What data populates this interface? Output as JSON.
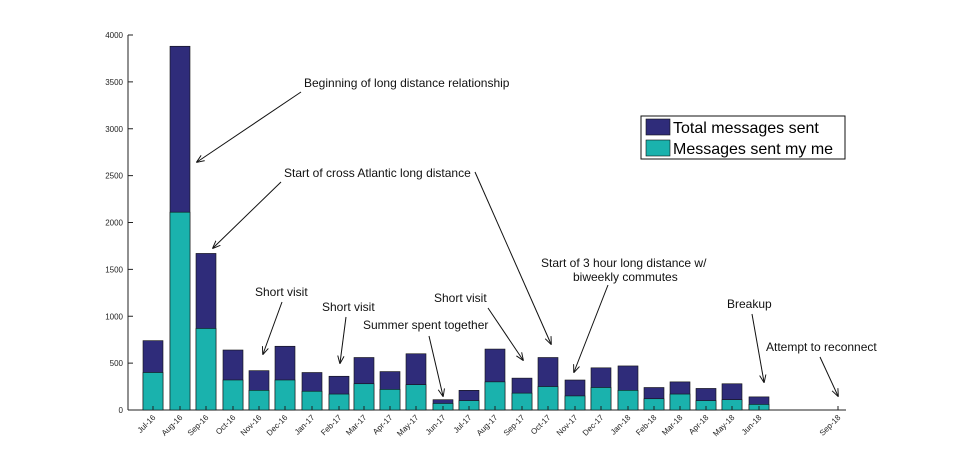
{
  "chart_data": {
    "type": "bar",
    "categories": [
      "Jul-16",
      "Aug-16",
      "Sep-16",
      "Oct-16",
      "Nov-16",
      "Dec-16",
      "Jan-17",
      "Feb-17",
      "Mar-17",
      "Apr-17",
      "May-17",
      "Jun-17",
      "Jul-17",
      "Aug-17",
      "Sep-17",
      "Oct-17",
      "Nov-17",
      "Dec-17",
      "Jan-18",
      "Feb-18",
      "Mar-18",
      "Apr-18",
      "May-18",
      "Jun-18",
      "Sep-18"
    ],
    "series": [
      {
        "name": "Total messages sent",
        "color": "#2f2c7a",
        "values": [
          740,
          3880,
          1670,
          640,
          420,
          680,
          400,
          360,
          560,
          410,
          600,
          110,
          210,
          650,
          340,
          560,
          320,
          450,
          470,
          240,
          300,
          230,
          280,
          140,
          0
        ]
      },
      {
        "name": "Messages sent my me",
        "color": "#1ab2ad",
        "values": [
          400,
          2110,
          870,
          320,
          210,
          320,
          200,
          170,
          280,
          220,
          270,
          70,
          100,
          300,
          180,
          250,
          150,
          240,
          210,
          120,
          170,
          100,
          110,
          60,
          0
        ]
      }
    ],
    "ylim": [
      0,
      4000
    ],
    "yticks": [
      0,
      500,
      1000,
      1500,
      2000,
      2500,
      3000,
      3500,
      4000
    ],
    "grid": false,
    "legend_position": "right",
    "annotations": [
      {
        "text": "Beginning of long distance relationship",
        "target": "Aug-16"
      },
      {
        "text": "Start of cross Atlantic long distance",
        "target": "Sep-16"
      },
      {
        "text": "Short visit",
        "target": "Nov-16"
      },
      {
        "text": "Short visit",
        "target": "Feb-17"
      },
      {
        "text": "Summer spent together",
        "target": "Jun-17"
      },
      {
        "text": "Short visit",
        "target": "Sep-17"
      },
      {
        "text": "Start of 3 hour long distance w/",
        "text2": "biweekly commutes",
        "target": "Nov-17"
      },
      {
        "text": "Breakup",
        "target": "Jun-18"
      },
      {
        "text": "Attempt to reconnect",
        "target": "Sep-18"
      }
    ]
  }
}
